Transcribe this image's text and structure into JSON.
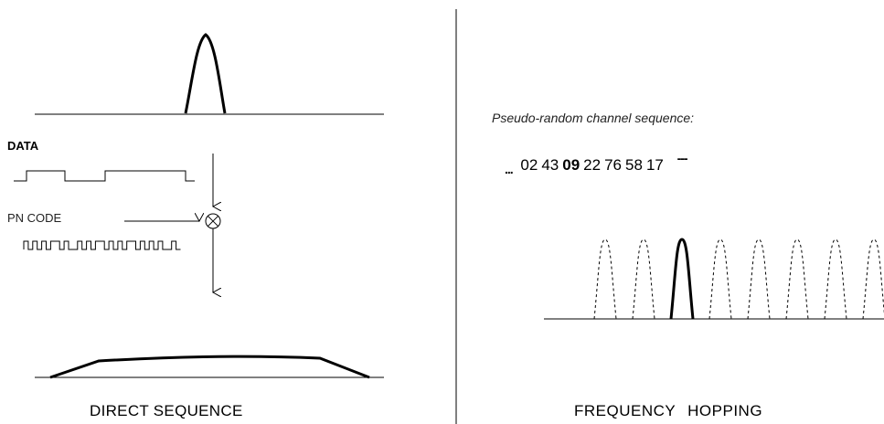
{
  "direct_sequence": {
    "caption": "DIRECT SEQUENCE",
    "data_label": "DATA",
    "pn_label": "PN CODE"
  },
  "frequency_hopping": {
    "caption": "FREQUENCY  HOPPING",
    "sequence_title": "Pseudo-random channel sequence:",
    "sequence_lead": "...",
    "channels": [
      "02",
      "43",
      "09",
      "22",
      "76",
      "58",
      "17"
    ],
    "highlighted_channel": "09",
    "sequence_trail": "---",
    "active_peak_index": 2,
    "peak_count": 8
  }
}
